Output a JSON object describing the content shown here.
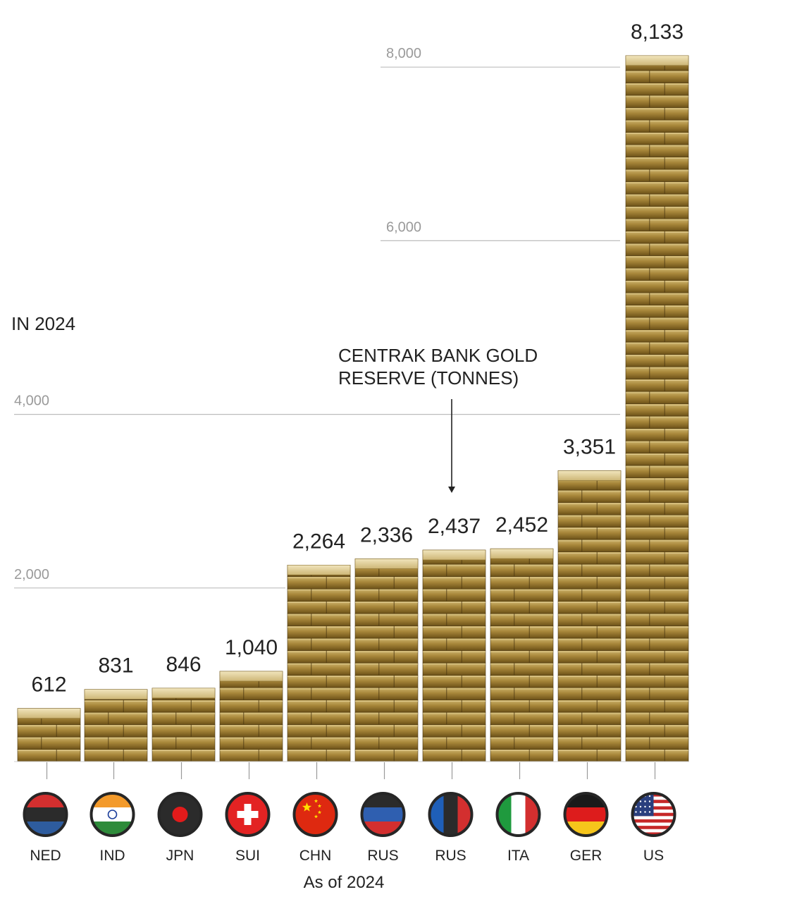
{
  "chart_data": {
    "type": "bar",
    "title_lines": [
      "CENTRAK BANK GOLD",
      "RESERVE (TONNES)"
    ],
    "year_label": "IN 2024",
    "footer": "As of 2024",
    "categories": [
      "NED",
      "IND",
      "JPN",
      "SUI",
      "CHN",
      "RUS",
      "RUS",
      "ITA",
      "GER",
      "US"
    ],
    "values": [
      612,
      831,
      846,
      1040,
      2264,
      2336,
      2437,
      2452,
      3351,
      8133
    ],
    "value_labels": [
      "612",
      "831",
      "846",
      "1,040",
      "2,264",
      "2,336",
      "2,437",
      "2,452",
      "3,351",
      "8,133"
    ],
    "yticks": [
      2000,
      4000,
      6000,
      8000
    ],
    "ytick_labels": [
      "2,000",
      "4,000",
      "6,000",
      "8,000"
    ],
    "ylim": [
      0,
      8133
    ],
    "grid": "partial",
    "bar_style": "stacked gold bars",
    "flags": [
      "netherlands-flag-icon",
      "india-flag-icon",
      "japan-flag-icon",
      "switzerland-flag-icon",
      "china-flag-icon",
      "russia-flag-icon",
      "russia-flag-icon",
      "italy-flag-icon",
      "germany-flag-icon",
      "usa-flag-icon"
    ]
  },
  "colors": {
    "gold_dark": "#6b5015",
    "gold_mid": "#a88a3a",
    "gold_light": "#d9c48a",
    "gold_highlight": "#efe2b6",
    "grid": "#bdbdbd",
    "text": "#222222",
    "tick_text": "#9a9a9a"
  }
}
